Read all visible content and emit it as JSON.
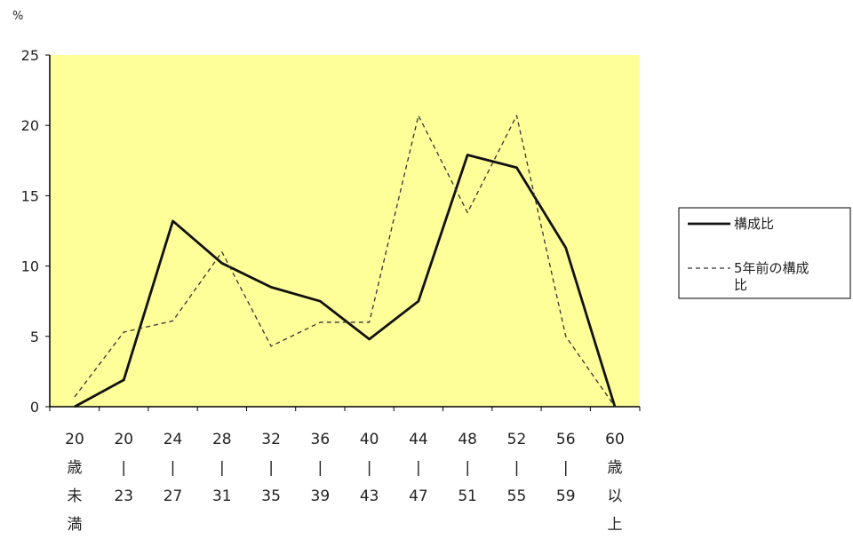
{
  "chart_data": {
    "type": "line",
    "unit": "%",
    "ylim": [
      0,
      25
    ],
    "yticks": [
      "0",
      "5",
      "10",
      "15",
      "20",
      "25"
    ],
    "grid": false,
    "legend_position": "right",
    "categories": [
      [
        "20",
        "歳",
        "未",
        "満"
      ],
      [
        "20",
        "|",
        "23"
      ],
      [
        "24",
        "|",
        "27"
      ],
      [
        "28",
        "|",
        "31"
      ],
      [
        "32",
        "|",
        "35"
      ],
      [
        "36",
        "|",
        "39"
      ],
      [
        "40",
        "|",
        "43"
      ],
      [
        "44",
        "|",
        "47"
      ],
      [
        "48",
        "|",
        "51"
      ],
      [
        "52",
        "|",
        "55"
      ],
      [
        "56",
        "|",
        "59"
      ],
      [
        "60",
        "歳",
        "以",
        "上"
      ]
    ],
    "series": [
      {
        "name": "構成比",
        "style": "solid",
        "color": "#111111",
        "values": [
          0,
          1.9,
          13.2,
          10.2,
          8.5,
          7.5,
          4.8,
          7.5,
          17.9,
          17.0,
          11.3,
          0
        ]
      },
      {
        "name": "5年前の構成比",
        "legend_lines": [
          "5年前の構成",
          "比"
        ],
        "style": "dashed",
        "color": "#333333",
        "values": [
          0.7,
          5.3,
          6.1,
          11.0,
          4.3,
          6.0,
          6.0,
          20.7,
          13.8,
          20.7,
          5.0,
          0
        ]
      }
    ],
    "plot_background": "#ffff99"
  }
}
